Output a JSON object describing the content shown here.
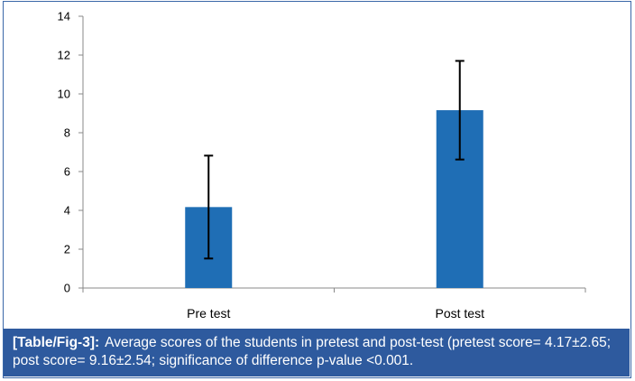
{
  "chart_data": {
    "type": "bar",
    "categories": [
      "Pre test",
      "Post test"
    ],
    "values": [
      4.17,
      9.16
    ],
    "error": [
      2.65,
      2.54
    ],
    "ylim": [
      0,
      14
    ],
    "yticks": [
      0,
      2,
      4,
      6,
      8,
      10,
      12,
      14
    ],
    "title": "",
    "xlabel": "",
    "ylabel": "",
    "grid": false,
    "bar_color": "#1f6eb5"
  },
  "caption": {
    "label": "[Table/Fig-3]:",
    "text": "Average scores of the students in pretest and post-test (pretest score= 4.17±2.65; post score= 9.16±2.54; significance of difference p-value <0.001."
  }
}
